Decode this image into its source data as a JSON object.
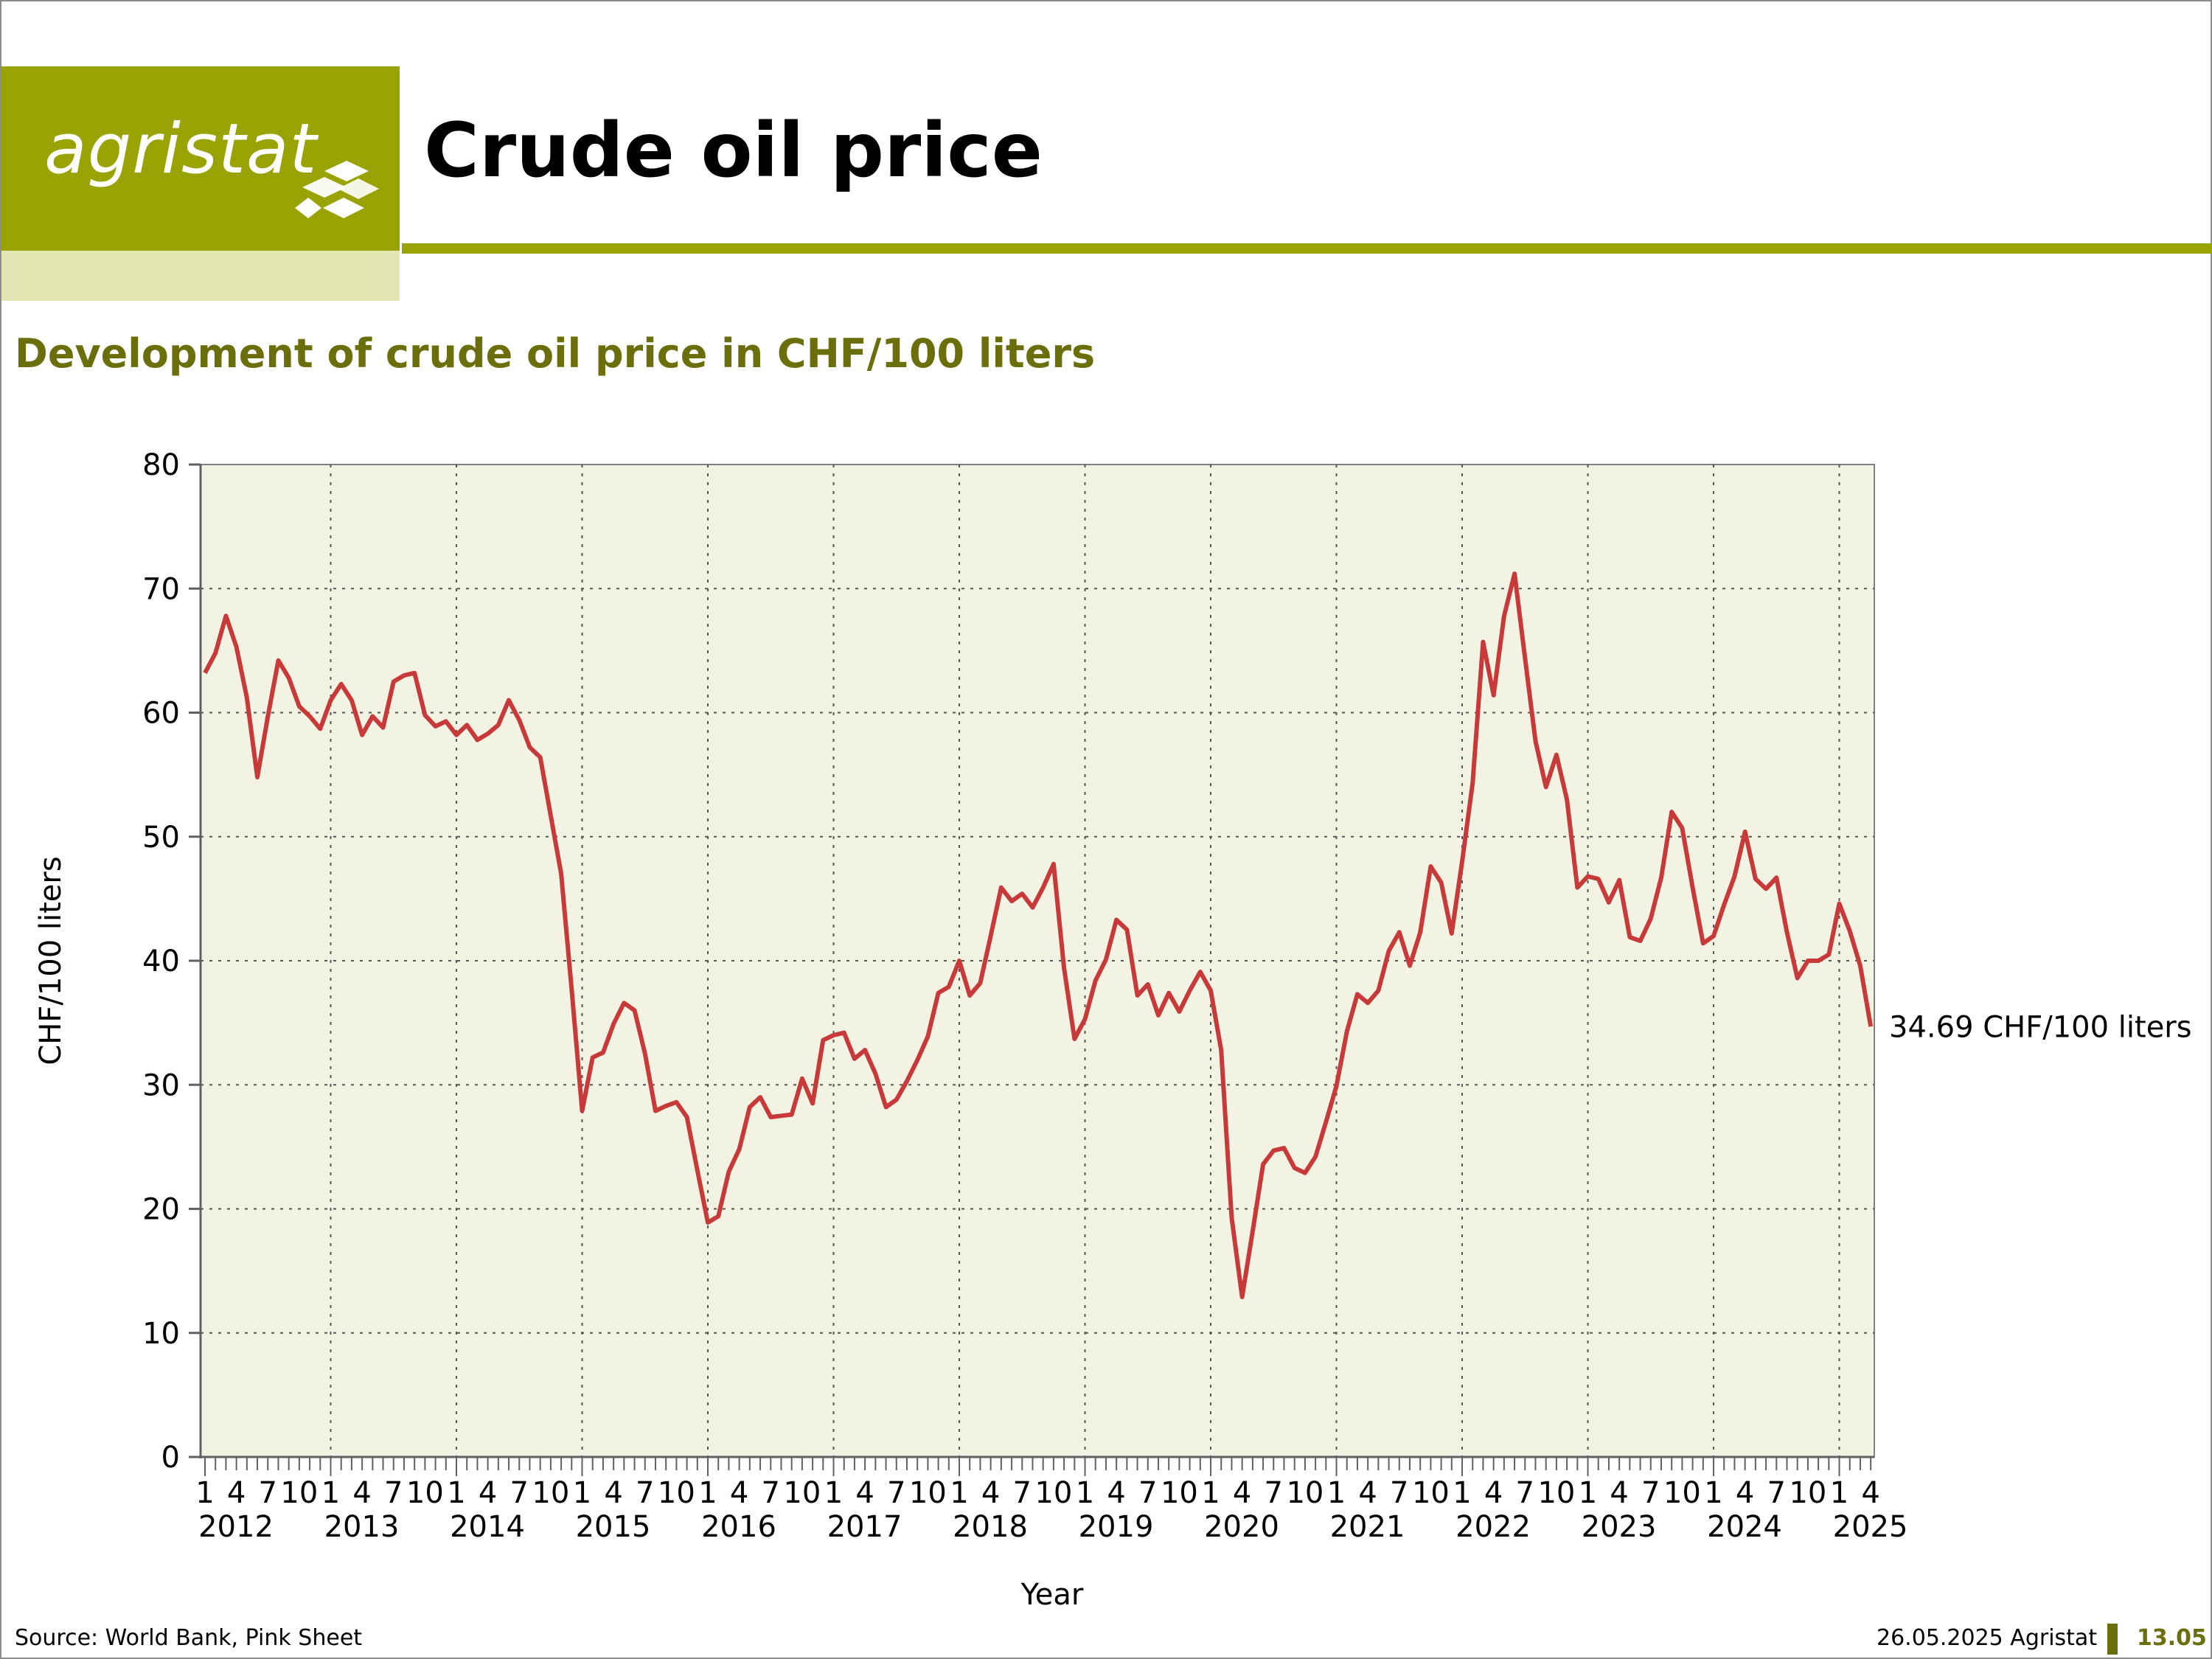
{
  "logo": {
    "text": "agristat"
  },
  "page_title": "Crude oil price",
  "subtitle": "Development of crude oil price in CHF/100 liters",
  "footer": {
    "source": "Source: World Bank, Pink Sheet",
    "date": "26.05.2025 Agristat",
    "slide_number": "13.05"
  },
  "colors": {
    "brand_olive": "#99a303",
    "brand_dark_olive": "#6b6f0b",
    "plot_background": "#f3f3e3",
    "line": "#c83a3a"
  },
  "chart_data": {
    "type": "line",
    "title": "",
    "xlabel": "Year",
    "ylabel": "CHF/100 liters",
    "ylim": [
      0,
      80
    ],
    "yticks": [
      0,
      10,
      20,
      30,
      40,
      50,
      60,
      70,
      80
    ],
    "grid": true,
    "x_start": "2012-01",
    "x_end": "2025-04",
    "month_tick_labels": [
      "1",
      "4",
      "7",
      "10"
    ],
    "year_labels": [
      "2012",
      "2013",
      "2014",
      "2015",
      "2016",
      "2017",
      "2018",
      "2019",
      "2020",
      "2021",
      "2022",
      "2023",
      "2024",
      "2025"
    ],
    "last_value_label": "34.69 CHF/100 liters",
    "series": [
      {
        "unit": "CHF/100 liters",
        "values": [
          63.2,
          64.8,
          67.8,
          65.3,
          61.2,
          54.8,
          59.7,
          64.2,
          62.8,
          60.5,
          59.7,
          58.7,
          61.0,
          62.3,
          61.0,
          58.2,
          59.7,
          58.8,
          62.5,
          63.0,
          63.2,
          59.8,
          58.9,
          59.3,
          58.2,
          59.0,
          57.8,
          58.3,
          59.0,
          61.0,
          59.4,
          57.2,
          56.4,
          51.7,
          47.0,
          37.7,
          27.9,
          32.2,
          32.6,
          34.9,
          36.6,
          36.0,
          32.5,
          27.9,
          28.3,
          28.6,
          27.4,
          23.1,
          18.9,
          19.4,
          23.0,
          24.8,
          28.2,
          29.0,
          27.4,
          27.5,
          27.6,
          30.5,
          28.5,
          33.6,
          34.0,
          34.2,
          32.1,
          32.8,
          30.9,
          28.2,
          28.8,
          30.3,
          32.0,
          33.9,
          37.4,
          37.9,
          40.0,
          37.2,
          38.2,
          42.0,
          45.9,
          44.8,
          45.4,
          44.3,
          45.9,
          47.8,
          39.4,
          33.7,
          35.3,
          38.4,
          40.1,
          43.3,
          42.5,
          37.2,
          38.1,
          35.6,
          37.4,
          35.9,
          37.6,
          39.1,
          37.6,
          32.8,
          19.3,
          12.9,
          18.2,
          23.6,
          24.7,
          24.9,
          23.3,
          22.9,
          24.2,
          27.0,
          29.9,
          34.3,
          37.3,
          36.6,
          37.6,
          40.8,
          42.3,
          39.6,
          42.3,
          47.6,
          46.3,
          42.2,
          48.0,
          54.3,
          65.7,
          61.4,
          67.8,
          71.2,
          64.4,
          57.7,
          54.0,
          56.6,
          53.0,
          45.9,
          46.8,
          46.6,
          44.7,
          46.5,
          41.9,
          41.6,
          43.4,
          46.7,
          52.0,
          50.7,
          45.9,
          41.4,
          42.0,
          44.5,
          46.8,
          50.4,
          46.6,
          45.8,
          46.7,
          42.3,
          38.6,
          40.0,
          40.0,
          40.5,
          44.6,
          42.4,
          39.6,
          34.69
        ]
      }
    ]
  }
}
